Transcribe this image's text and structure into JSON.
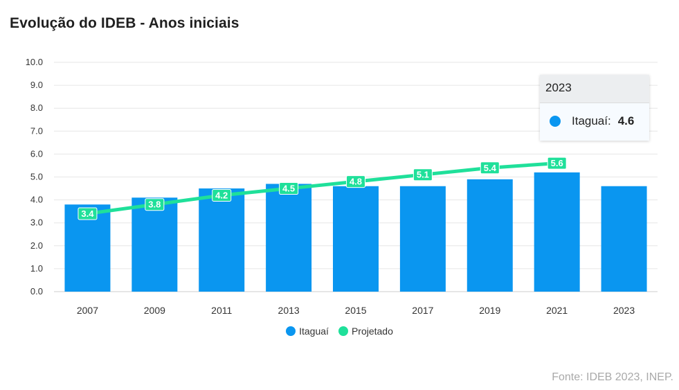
{
  "title": "Evolução do IDEB - Anos iniciais",
  "source": "Fonte: IDEB 2023, INEP.",
  "colors": {
    "bar": "#0a96f0",
    "line": "#1fe09a",
    "grid": "#e6e6e6"
  },
  "chart_data": {
    "type": "bar",
    "categories": [
      "2007",
      "2009",
      "2011",
      "2013",
      "2015",
      "2017",
      "2019",
      "2021",
      "2023"
    ],
    "ylim": [
      0,
      10
    ],
    "yticks": [
      "0.0",
      "1.0",
      "2.0",
      "3.0",
      "4.0",
      "5.0",
      "6.0",
      "7.0",
      "8.0",
      "9.0",
      "10.0"
    ],
    "grid": true,
    "legend_position": "bottom-center",
    "series": [
      {
        "name": "Itaguaí",
        "type": "bar",
        "values": [
          3.8,
          4.1,
          4.5,
          4.7,
          4.6,
          4.6,
          4.9,
          5.2,
          4.6
        ]
      },
      {
        "name": "Projetado",
        "type": "line",
        "values": [
          3.4,
          3.8,
          4.2,
          4.5,
          4.8,
          5.1,
          5.4,
          5.6,
          null
        ],
        "labels": [
          "3.4",
          "3.8",
          "4.2",
          "4.5",
          "4.8",
          "5.1",
          "5.4",
          "5.6",
          null
        ]
      }
    ]
  },
  "legend": [
    {
      "label": "Itaguaí"
    },
    {
      "label": "Projetado"
    }
  ],
  "tooltip": {
    "header": "2023",
    "series": "Itaguaí:",
    "value": "4.6"
  }
}
